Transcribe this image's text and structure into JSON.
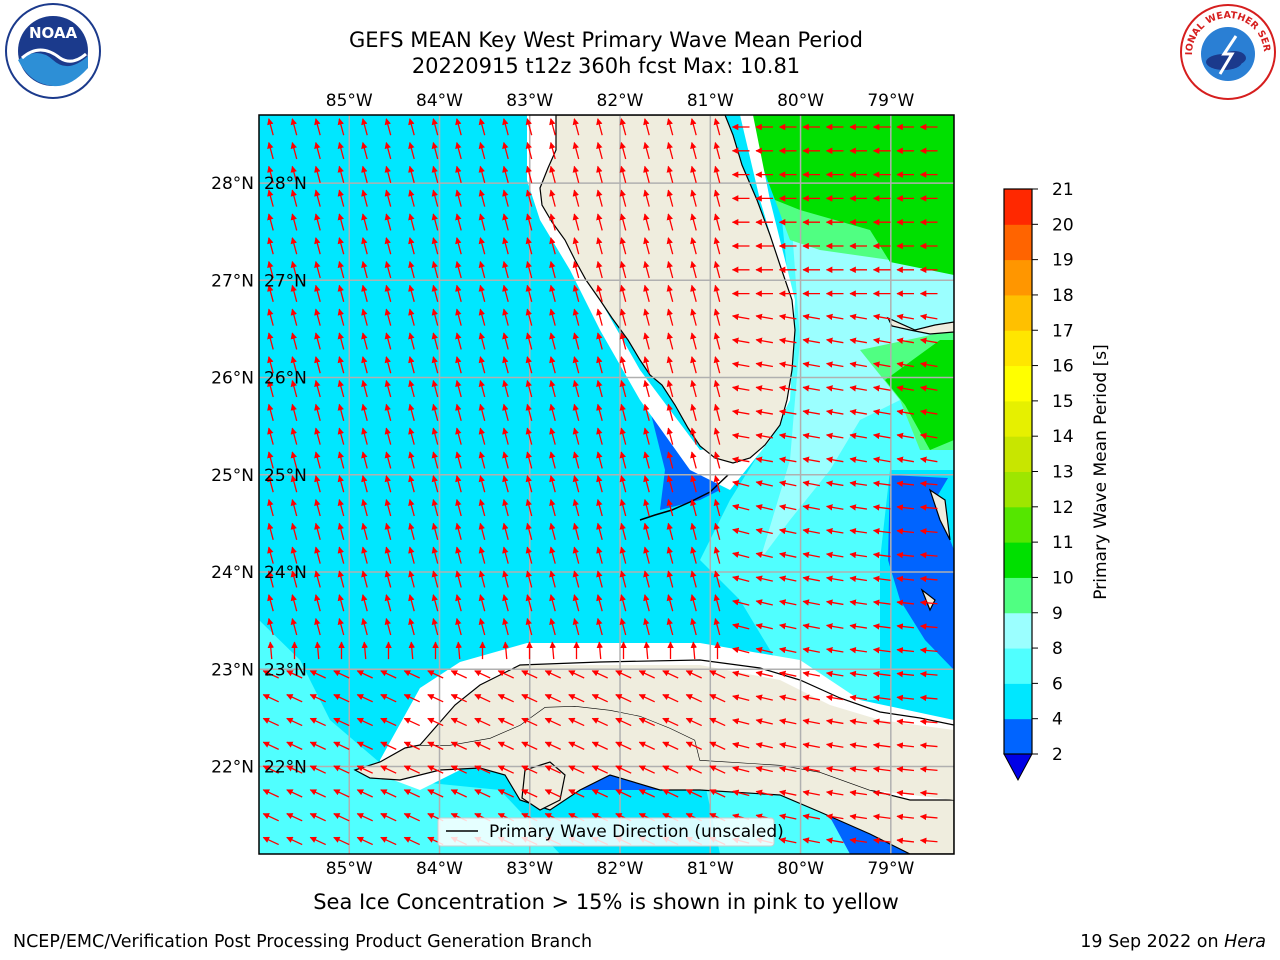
{
  "title": {
    "line1": "GEFS MEAN Key West Primary Wave Mean Period",
    "line2": "20220915 t12z 360h fcst   Max: 10.81"
  },
  "map": {
    "lon_ticks": [
      "85°W",
      "84°W",
      "83°W",
      "82°W",
      "81°W",
      "80°W",
      "79°W"
    ],
    "lon_values": [
      -85,
      -84,
      -83,
      -82,
      -81,
      -80,
      -79
    ],
    "lat_ticks": [
      "28°N",
      "27°N",
      "26°N",
      "25°N",
      "24°N",
      "23°N",
      "22°N"
    ],
    "lat_values": [
      28,
      27,
      26,
      25,
      24,
      23,
      22
    ],
    "lon_range": [
      -86,
      -78.3
    ],
    "lat_range": [
      21.1,
      28.7
    ],
    "land_color": "#efedde",
    "arrow_color": "#ff0000",
    "grid": true
  },
  "legend": {
    "label": "Primary Wave Direction (unscaled)"
  },
  "colorbar": {
    "label": "Primary Wave Mean Period [s]",
    "ticks": [
      "2",
      "4",
      "6",
      "8",
      "9",
      "10",
      "11",
      "12",
      "13",
      "14",
      "15",
      "16",
      "17",
      "18",
      "19",
      "20",
      "21"
    ],
    "colors": [
      "#0064ff",
      "#00e7ff",
      "#50ffff",
      "#9bffff",
      "#50ff82",
      "#00e000",
      "#55e600",
      "#9ee600",
      "#c8e600",
      "#e6f000",
      "#ffff00",
      "#ffe600",
      "#ffc000",
      "#ff9600",
      "#ff6400",
      "#ff2800"
    ],
    "under_color": "#0000e6"
  },
  "footnote": "Sea Ice Concentration > 15% is shown in pink to yellow",
  "credits": {
    "left": "NCEP/EMC/Verification Post Processing Product Generation Branch",
    "right_prefix": "19 Sep 2022 on ",
    "right_host": "Hera"
  },
  "logos": {
    "noaa": "NOAA",
    "nws": "NATIONAL WEATHER SERVICE"
  }
}
